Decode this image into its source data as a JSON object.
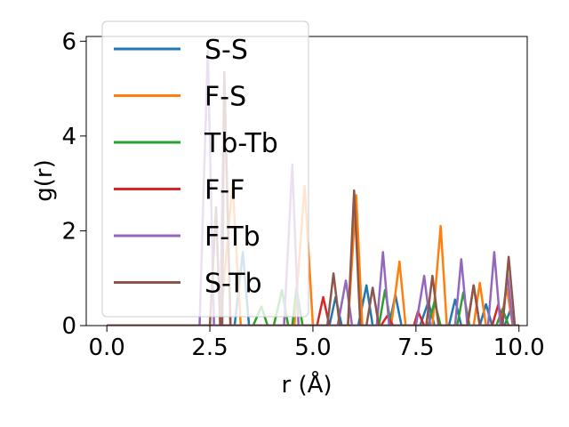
{
  "chart_data": {
    "type": "line",
    "title": "",
    "xlabel": "r (Å)",
    "ylabel": "g(r)",
    "xlim": [
      -0.5,
      10.2
    ],
    "ylim": [
      0,
      6.1
    ],
    "xticks": [
      0.0,
      2.5,
      5.0,
      7.5,
      10.0
    ],
    "xtick_labels": [
      "0.0",
      "2.5",
      "5.0",
      "7.5",
      "10.0"
    ],
    "yticks": [
      0,
      2,
      4,
      6
    ],
    "ytick_labels": [
      "0",
      "2",
      "4",
      "6"
    ],
    "grid": false,
    "legend_position": "top-left",
    "series": [
      {
        "name": "S-S",
        "color": "#1f77b4",
        "points": [
          [
            0,
            0
          ],
          [
            3.1,
            0
          ],
          [
            3.3,
            1.55
          ],
          [
            3.45,
            0
          ],
          [
            5.4,
            0
          ],
          [
            5.55,
            0.6
          ],
          [
            5.7,
            0
          ],
          [
            6.1,
            0
          ],
          [
            6.3,
            0.85
          ],
          [
            6.45,
            0
          ],
          [
            6.85,
            0
          ],
          [
            7.0,
            0.65
          ],
          [
            7.15,
            0
          ],
          [
            7.6,
            0
          ],
          [
            7.8,
            0.5
          ],
          [
            7.95,
            0
          ],
          [
            8.3,
            0
          ],
          [
            8.45,
            0.55
          ],
          [
            8.6,
            0
          ],
          [
            9.05,
            0
          ],
          [
            9.2,
            0.45
          ],
          [
            9.35,
            0
          ],
          [
            9.65,
            0
          ],
          [
            9.8,
            0.35
          ],
          [
            9.9,
            0
          ],
          [
            10.0,
            0
          ]
        ]
      },
      {
        "name": "F-S",
        "color": "#ff7f0e",
        "points": [
          [
            0,
            0
          ],
          [
            2.75,
            0
          ],
          [
            3.05,
            3.0
          ],
          [
            3.25,
            0
          ],
          [
            4.55,
            0
          ],
          [
            4.8,
            2.95
          ],
          [
            5.0,
            0
          ],
          [
            5.85,
            0
          ],
          [
            6.05,
            2.75
          ],
          [
            6.2,
            0
          ],
          [
            6.9,
            0
          ],
          [
            7.1,
            1.35
          ],
          [
            7.25,
            0
          ],
          [
            7.9,
            0
          ],
          [
            8.1,
            2.1
          ],
          [
            8.25,
            0
          ],
          [
            8.9,
            0
          ],
          [
            9.05,
            0.9
          ],
          [
            9.2,
            0
          ],
          [
            9.55,
            0
          ],
          [
            9.7,
            0.8
          ],
          [
            9.85,
            0
          ],
          [
            10.0,
            0
          ]
        ]
      },
      {
        "name": "Tb-Tb",
        "color": "#2ca02c",
        "points": [
          [
            0,
            0
          ],
          [
            3.55,
            0
          ],
          [
            3.75,
            0.4
          ],
          [
            3.9,
            0
          ],
          [
            4.05,
            0
          ],
          [
            4.25,
            0.75
          ],
          [
            4.4,
            0
          ],
          [
            4.5,
            0
          ],
          [
            4.6,
            0.8
          ],
          [
            4.75,
            0
          ],
          [
            6.6,
            0
          ],
          [
            6.75,
            0.75
          ],
          [
            6.9,
            0
          ],
          [
            7.8,
            0
          ],
          [
            7.95,
            0.5
          ],
          [
            8.1,
            0
          ],
          [
            8.5,
            0
          ],
          [
            8.65,
            0.7
          ],
          [
            8.8,
            0
          ],
          [
            9.45,
            0
          ],
          [
            9.6,
            0.35
          ],
          [
            9.75,
            0
          ],
          [
            10.0,
            0
          ]
        ]
      },
      {
        "name": "F-F",
        "color": "#d62728",
        "points": [
          [
            0,
            0
          ],
          [
            5.1,
            0
          ],
          [
            5.25,
            0.6
          ],
          [
            5.4,
            0
          ],
          [
            6.65,
            0
          ],
          [
            6.8,
            0.2
          ],
          [
            6.95,
            0
          ],
          [
            7.45,
            0
          ],
          [
            7.55,
            0.3
          ],
          [
            7.7,
            0
          ],
          [
            8.75,
            0
          ],
          [
            8.9,
            0.85
          ],
          [
            9.05,
            0
          ],
          [
            9.35,
            0
          ],
          [
            9.5,
            0.45
          ],
          [
            9.6,
            0
          ],
          [
            10.0,
            0
          ]
        ]
      },
      {
        "name": "F-Tb",
        "color": "#9467bd",
        "points": [
          [
            0,
            0
          ],
          [
            2.25,
            0
          ],
          [
            2.45,
            5.8
          ],
          [
            2.6,
            0
          ],
          [
            2.75,
            0
          ],
          [
            2.85,
            5.2
          ],
          [
            3.0,
            0
          ],
          [
            4.3,
            0
          ],
          [
            4.5,
            3.4
          ],
          [
            4.65,
            0
          ],
          [
            5.6,
            0
          ],
          [
            5.8,
            0.95
          ],
          [
            5.95,
            0
          ],
          [
            6.55,
            0
          ],
          [
            6.7,
            1.55
          ],
          [
            6.85,
            0
          ],
          [
            7.5,
            0
          ],
          [
            7.7,
            1.05
          ],
          [
            7.85,
            0
          ],
          [
            8.45,
            0
          ],
          [
            8.6,
            1.4
          ],
          [
            8.75,
            0
          ],
          [
            9.25,
            0
          ],
          [
            9.4,
            1.55
          ],
          [
            9.55,
            0
          ],
          [
            9.6,
            0
          ],
          [
            9.72,
            1.1
          ],
          [
            9.85,
            0
          ],
          [
            10.0,
            0
          ]
        ]
      },
      {
        "name": "S-Tb",
        "color": "#8c564b",
        "points": [
          [
            0,
            0
          ],
          [
            2.5,
            0
          ],
          [
            2.65,
            2.5
          ],
          [
            2.75,
            0
          ],
          [
            2.8,
            0
          ],
          [
            2.85,
            5.35
          ],
          [
            3.0,
            0
          ],
          [
            5.35,
            0
          ],
          [
            5.5,
            1.1
          ],
          [
            5.65,
            0
          ],
          [
            5.85,
            0
          ],
          [
            6.0,
            2.85
          ],
          [
            6.15,
            0
          ],
          [
            6.3,
            0
          ],
          [
            6.45,
            0.8
          ],
          [
            6.6,
            0
          ],
          [
            7.75,
            0
          ],
          [
            7.9,
            1.05
          ],
          [
            8.05,
            0
          ],
          [
            8.75,
            0
          ],
          [
            8.9,
            0.85
          ],
          [
            9.05,
            0
          ],
          [
            9.6,
            0
          ],
          [
            9.75,
            1.45
          ],
          [
            9.9,
            0
          ],
          [
            10.0,
            0
          ]
        ]
      }
    ]
  }
}
